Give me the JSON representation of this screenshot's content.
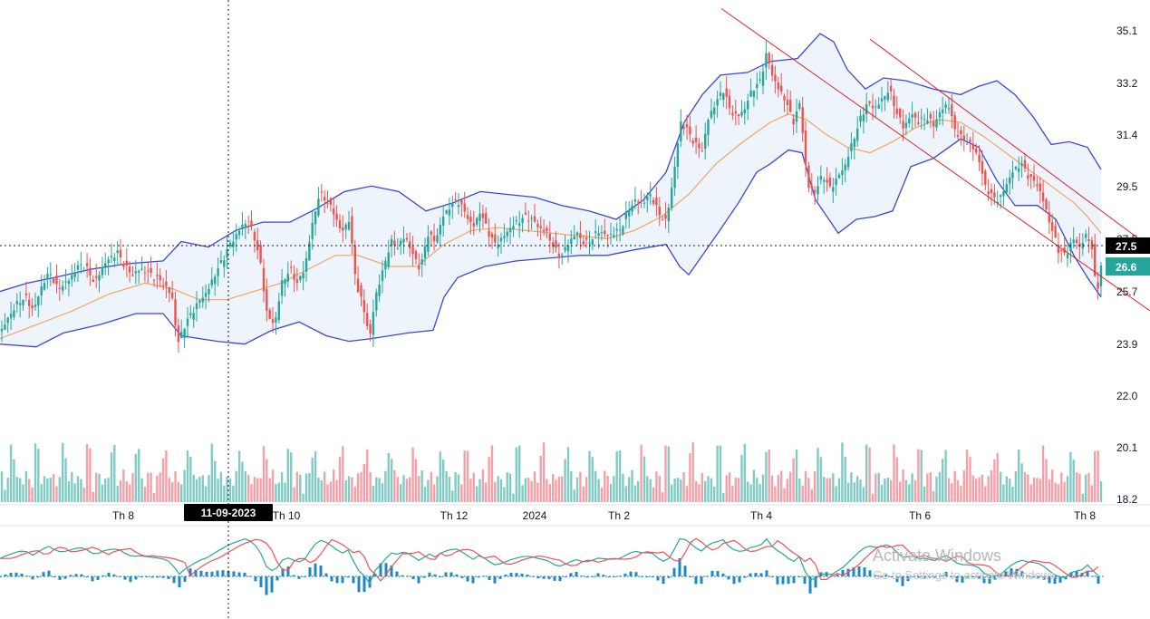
{
  "chart_data": {
    "type": "candlestick",
    "price_axis_labels": [
      "35.1",
      "33.2",
      "31.4",
      "29.5",
      "27.5",
      "25.7",
      "23.9",
      "22.0",
      "20.1",
      "18.2"
    ],
    "time_axis_labels": [
      "Th 8",
      "Th 10",
      "Th 12",
      "2024",
      "Th 2",
      "Th 4",
      "Th 6",
      "Th 8"
    ],
    "crosshair": {
      "date_label": "11-09-2023",
      "price_label": "27.5"
    },
    "last_price": "26.6",
    "ylim": [
      17.7,
      36.6
    ],
    "close_path": [
      [
        0,
        24.2
      ],
      [
        10,
        24.8
      ],
      [
        20,
        25.3
      ],
      [
        28,
        25.5
      ],
      [
        37,
        25.0
      ],
      [
        46,
        25.9
      ],
      [
        55,
        26.4
      ],
      [
        63,
        25.8
      ],
      [
        73,
        26.0
      ],
      [
        80,
        26.3
      ],
      [
        88,
        26.7
      ],
      [
        96,
        26.5
      ],
      [
        105,
        26.0
      ],
      [
        113,
        26.6
      ],
      [
        121,
        26.9
      ],
      [
        130,
        27.1
      ],
      [
        138,
        26.6
      ],
      [
        146,
        26.3
      ],
      [
        155,
        26.5
      ],
      [
        163,
        26.4
      ],
      [
        172,
        26.2
      ],
      [
        180,
        26.0
      ],
      [
        190,
        25.5
      ],
      [
        196,
        23.8
      ],
      [
        204,
        24.5
      ],
      [
        213,
        25.0
      ],
      [
        221,
        25.4
      ],
      [
        229,
        25.7
      ],
      [
        237,
        26.3
      ],
      [
        245,
        26.8
      ],
      [
        254,
        27.4
      ],
      [
        262,
        27.8
      ],
      [
        270,
        28.2
      ],
      [
        279,
        27.9
      ],
      [
        287,
        26.8
      ],
      [
        295,
        24.8
      ],
      [
        303,
        24.5
      ],
      [
        311,
        26.0
      ],
      [
        320,
        26.5
      ],
      [
        328,
        26.0
      ],
      [
        336,
        26.5
      ],
      [
        344,
        28.0
      ],
      [
        352,
        29.2
      ],
      [
        360,
        29.0
      ],
      [
        369,
        28.5
      ],
      [
        377,
        27.8
      ],
      [
        385,
        28.3
      ],
      [
        393,
        26.0
      ],
      [
        402,
        25.0
      ],
      [
        408,
        24.0
      ],
      [
        414,
        25.5
      ],
      [
        423,
        26.5
      ],
      [
        431,
        27.5
      ],
      [
        439,
        27.3
      ],
      [
        447,
        27.7
      ],
      [
        456,
        27.0
      ],
      [
        464,
        26.5
      ],
      [
        472,
        27.8
      ],
      [
        480,
        27.5
      ],
      [
        489,
        28.4
      ],
      [
        497,
        28.8
      ],
      [
        505,
        29.0
      ],
      [
        514,
        28.5
      ],
      [
        522,
        28.0
      ],
      [
        530,
        28.6
      ],
      [
        538,
        27.9
      ],
      [
        546,
        27.4
      ],
      [
        554,
        27.6
      ],
      [
        563,
        28.0
      ],
      [
        571,
        28.2
      ],
      [
        579,
        28.4
      ],
      [
        587,
        28.3
      ],
      [
        595,
        28.0
      ],
      [
        604,
        27.8
      ],
      [
        612,
        27.2
      ],
      [
        620,
        27.0
      ],
      [
        628,
        27.5
      ],
      [
        637,
        27.8
      ],
      [
        645,
        27.4
      ],
      [
        653,
        27.6
      ],
      [
        661,
        27.9
      ],
      [
        669,
        27.7
      ],
      [
        678,
        27.8
      ],
      [
        686,
        28.0
      ],
      [
        694,
        28.7
      ],
      [
        702,
        29.0
      ],
      [
        710,
        28.9
      ],
      [
        718,
        29.2
      ],
      [
        727,
        28.5
      ],
      [
        735,
        28.2
      ],
      [
        743,
        29.8
      ],
      [
        751,
        31.8
      ],
      [
        759,
        31.5
      ],
      [
        767,
        31.0
      ],
      [
        775,
        30.8
      ],
      [
        782,
        32.0
      ],
      [
        790,
        32.5
      ],
      [
        798,
        33.0
      ],
      [
        806,
        32.2
      ],
      [
        814,
        32.0
      ],
      [
        822,
        32.3
      ],
      [
        830,
        33.0
      ],
      [
        838,
        33.2
      ],
      [
        846,
        34.3
      ],
      [
        851,
        33.6
      ],
      [
        859,
        33.0
      ],
      [
        867,
        32.6
      ],
      [
        875,
        31.8
      ],
      [
        883,
        32.5
      ],
      [
        891,
        29.5
      ],
      [
        899,
        29.3
      ],
      [
        908,
        29.9
      ],
      [
        916,
        29.4
      ],
      [
        924,
        29.8
      ],
      [
        932,
        30.2
      ],
      [
        940,
        31.0
      ],
      [
        948,
        31.8
      ],
      [
        957,
        32.5
      ],
      [
        965,
        32.3
      ],
      [
        973,
        32.6
      ],
      [
        981,
        33.0
      ],
      [
        989,
        32.2
      ],
      [
        997,
        31.6
      ],
      [
        1006,
        32.1
      ],
      [
        1014,
        31.8
      ],
      [
        1022,
        32.0
      ],
      [
        1030,
        31.7
      ],
      [
        1038,
        32.2
      ],
      [
        1046,
        32.5
      ],
      [
        1054,
        31.5
      ],
      [
        1062,
        31.2
      ],
      [
        1071,
        31.0
      ],
      [
        1079,
        30.6
      ],
      [
        1087,
        29.5
      ],
      [
        1095,
        29.1
      ],
      [
        1103,
        29.0
      ],
      [
        1111,
        29.6
      ],
      [
        1119,
        30.1
      ],
      [
        1127,
        30.3
      ],
      [
        1136,
        29.8
      ],
      [
        1144,
        29.6
      ],
      [
        1152,
        28.9
      ],
      [
        1160,
        28.0
      ],
      [
        1168,
        27.2
      ],
      [
        1176,
        27.0
      ],
      [
        1184,
        27.6
      ],
      [
        1192,
        27.3
      ],
      [
        1200,
        27.8
      ],
      [
        1205,
        27.2
      ],
      [
        1210,
        25.6
      ],
      [
        1215,
        26.6
      ]
    ],
    "ma_path": [
      [
        0,
        24.0
      ],
      [
        40,
        24.5
      ],
      [
        80,
        25.0
      ],
      [
        120,
        25.6
      ],
      [
        160,
        26.0
      ],
      [
        190,
        25.8
      ],
      [
        220,
        25.4
      ],
      [
        250,
        25.4
      ],
      [
        280,
        25.7
      ],
      [
        310,
        26.0
      ],
      [
        340,
        26.5
      ],
      [
        370,
        27.0
      ],
      [
        395,
        27.0
      ],
      [
        430,
        26.6
      ],
      [
        460,
        26.6
      ],
      [
        490,
        27.4
      ],
      [
        520,
        27.9
      ],
      [
        550,
        28.0
      ],
      [
        580,
        27.9
      ],
      [
        610,
        27.8
      ],
      [
        640,
        27.7
      ],
      [
        670,
        27.6
      ],
      [
        700,
        27.9
      ],
      [
        730,
        28.4
      ],
      [
        760,
        29.2
      ],
      [
        790,
        30.3
      ],
      [
        820,
        31.1
      ],
      [
        850,
        31.8
      ],
      [
        870,
        32.1
      ],
      [
        890,
        31.9
      ],
      [
        910,
        31.4
      ],
      [
        935,
        30.9
      ],
      [
        960,
        30.7
      ],
      [
        985,
        31.1
      ],
      [
        1010,
        31.6
      ],
      [
        1035,
        31.9
      ],
      [
        1060,
        31.8
      ],
      [
        1085,
        31.3
      ],
      [
        1110,
        30.7
      ],
      [
        1135,
        30.1
      ],
      [
        1160,
        29.5
      ],
      [
        1185,
        28.9
      ],
      [
        1200,
        28.4
      ],
      [
        1215,
        27.8
      ]
    ],
    "upper_band_path": [
      [
        0,
        25.7
      ],
      [
        30,
        26.0
      ],
      [
        60,
        26.2
      ],
      [
        100,
        26.5
      ],
      [
        140,
        26.7
      ],
      [
        180,
        26.8
      ],
      [
        200,
        27.5
      ],
      [
        230,
        27.3
      ],
      [
        260,
        27.9
      ],
      [
        290,
        28.2
      ],
      [
        320,
        28.2
      ],
      [
        350,
        28.7
      ],
      [
        380,
        29.3
      ],
      [
        410,
        29.5
      ],
      [
        440,
        29.3
      ],
      [
        470,
        28.6
      ],
      [
        500,
        28.9
      ],
      [
        530,
        29.3
      ],
      [
        560,
        29.2
      ],
      [
        590,
        29.1
      ],
      [
        620,
        28.8
      ],
      [
        650,
        28.6
      ],
      [
        680,
        28.3
      ],
      [
        710,
        29.0
      ],
      [
        735,
        30.0
      ],
      [
        755,
        31.8
      ],
      [
        775,
        32.8
      ],
      [
        795,
        33.5
      ],
      [
        825,
        33.6
      ],
      [
        850,
        34.0
      ],
      [
        880,
        34.1
      ],
      [
        905,
        35.0
      ],
      [
        920,
        34.7
      ],
      [
        935,
        33.7
      ],
      [
        955,
        33.0
      ],
      [
        975,
        33.4
      ],
      [
        1000,
        33.3
      ],
      [
        1030,
        33.0
      ],
      [
        1060,
        32.8
      ],
      [
        1080,
        33.1
      ],
      [
        1100,
        33.3
      ],
      [
        1120,
        32.8
      ],
      [
        1140,
        32.0
      ],
      [
        1160,
        31.0
      ],
      [
        1180,
        31.1
      ],
      [
        1200,
        30.9
      ],
      [
        1215,
        30.1
      ]
    ],
    "lower_band_path": [
      [
        0,
        23.8
      ],
      [
        40,
        23.7
      ],
      [
        70,
        24.2
      ],
      [
        110,
        24.5
      ],
      [
        150,
        24.9
      ],
      [
        180,
        24.9
      ],
      [
        200,
        24.1
      ],
      [
        240,
        23.9
      ],
      [
        270,
        23.8
      ],
      [
        300,
        24.3
      ],
      [
        330,
        24.6
      ],
      [
        360,
        24.1
      ],
      [
        385,
        23.9
      ],
      [
        410,
        24.0
      ],
      [
        450,
        24.2
      ],
      [
        478,
        24.3
      ],
      [
        490,
        25.5
      ],
      [
        505,
        26.2
      ],
      [
        535,
        26.6
      ],
      [
        570,
        26.8
      ],
      [
        605,
        26.9
      ],
      [
        640,
        27.0
      ],
      [
        670,
        27.0
      ],
      [
        700,
        27.2
      ],
      [
        735,
        27.4
      ],
      [
        750,
        26.6
      ],
      [
        760,
        26.3
      ],
      [
        790,
        27.7
      ],
      [
        815,
        28.9
      ],
      [
        835,
        30.0
      ],
      [
        850,
        30.3
      ],
      [
        870,
        30.8
      ],
      [
        885,
        30.7
      ],
      [
        900,
        29.0
      ],
      [
        925,
        27.8
      ],
      [
        945,
        28.3
      ],
      [
        965,
        28.4
      ],
      [
        985,
        28.6
      ],
      [
        1005,
        30.2
      ],
      [
        1030,
        30.5
      ],
      [
        1060,
        31.2
      ],
      [
        1080,
        30.9
      ],
      [
        1100,
        29.7
      ],
      [
        1120,
        28.8
      ],
      [
        1145,
        28.8
      ],
      [
        1165,
        28.3
      ],
      [
        1185,
        27.0
      ],
      [
        1200,
        26.2
      ],
      [
        1215,
        25.5
      ]
    ],
    "channel_lines": [
      {
        "from": [
          796,
          35.9
        ],
        "to": [
          1269,
          25.0
        ]
      },
      {
        "from": [
          960,
          34.8
        ],
        "to": [
          1269,
          27.3
        ]
      }
    ],
    "colors": {
      "up": "#26a69a",
      "down": "#ef5350",
      "band": "#3d46d9",
      "band_fill": "#eef4fb",
      "ma": "#f4a460",
      "channel": "#e0202a",
      "macd_line": "#26a69a",
      "signal_line": "#ef5350",
      "macd_hist": "#1e88c4",
      "volume_up": "#80cbc4",
      "volume_down": "#f4a0a8",
      "last_price_badge": "#26a69a",
      "crosshair_badge": "#000000"
    },
    "watermark": {
      "line1": "Activate Windows",
      "line2": "Go to Settings to activate Windows."
    }
  }
}
